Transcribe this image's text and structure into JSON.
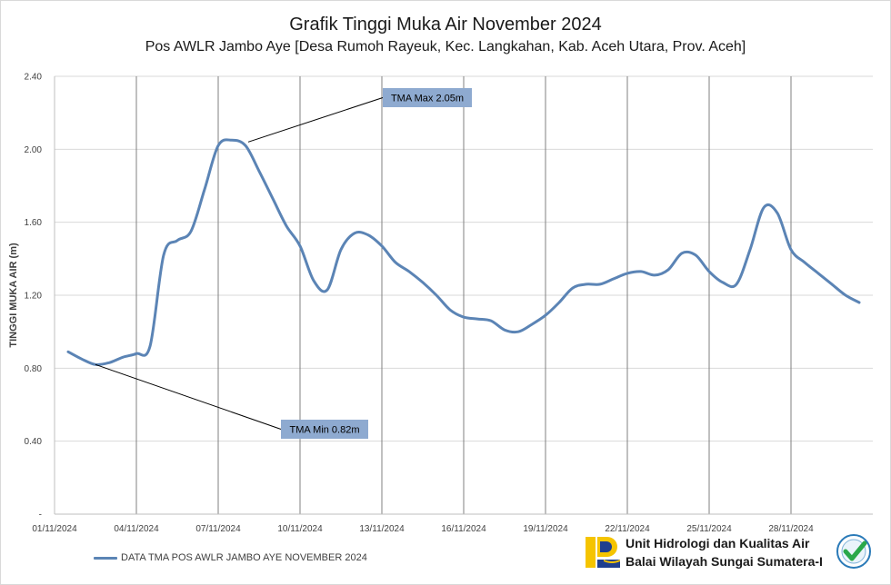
{
  "chart_data": {
    "type": "line",
    "title": "Grafik Tinggi Muka Air November 2024",
    "subtitle": "Pos AWLR Jambo Aye [Desa Rumoh Rayeuk, Kec. Langkahan, Kab. Aceh Utara, Prov. Aceh]",
    "ylabel": "TINGGI MUKA AIR (m)",
    "xlabel": "",
    "ylim": [
      0,
      2.4
    ],
    "yticks": [
      0,
      0.4,
      0.8,
      1.2,
      1.6,
      2.0,
      2.4
    ],
    "ytick_labels": [
      "-",
      "0.40",
      "0.80",
      "1.20",
      "1.60",
      "2.00",
      "2.40"
    ],
    "xticks": [
      "01/11/2024",
      "04/11/2024",
      "07/11/2024",
      "10/11/2024",
      "13/11/2024",
      "16/11/2024",
      "19/11/2024",
      "22/11/2024",
      "25/11/2024",
      "28/11/2024"
    ],
    "grid": "vertical and horizontal",
    "legend_position": "bottom-left",
    "series": [
      {
        "name": "DATA TMA POS AWLR JAMBO AYE NOVEMBER 2024",
        "color": "#5b84b5",
        "x": [
          1.5,
          2,
          2.5,
          3,
          3.5,
          4,
          4.5,
          5,
          5.5,
          6,
          6.5,
          7,
          7.5,
          8,
          8.5,
          9,
          9.5,
          10,
          10.5,
          11,
          11.5,
          12,
          12.5,
          13,
          13.5,
          14,
          14.5,
          15,
          15.5,
          16,
          16.5,
          17,
          17.5,
          18,
          18.5,
          19,
          19.5,
          20,
          20.5,
          21,
          21.5,
          22,
          22.5,
          23,
          23.5,
          24,
          24.5,
          25,
          25.5,
          26,
          26.5,
          27,
          27.5,
          28,
          28.5,
          29,
          29.5,
          30,
          30.5
        ],
        "y": [
          0.89,
          0.85,
          0.82,
          0.83,
          0.86,
          0.88,
          0.92,
          1.42,
          1.5,
          1.55,
          1.78,
          2.02,
          2.05,
          2.02,
          1.88,
          1.73,
          1.58,
          1.47,
          1.28,
          1.23,
          1.45,
          1.54,
          1.53,
          1.47,
          1.38,
          1.33,
          1.27,
          1.2,
          1.12,
          1.08,
          1.07,
          1.06,
          1.01,
          1.0,
          1.04,
          1.09,
          1.16,
          1.24,
          1.26,
          1.26,
          1.29,
          1.32,
          1.33,
          1.31,
          1.34,
          1.43,
          1.42,
          1.33,
          1.27,
          1.26,
          1.45,
          1.68,
          1.65,
          1.45,
          1.38,
          1.32,
          1.26,
          1.2,
          1.16
        ]
      }
    ],
    "annotations": [
      {
        "text": "TMA Max 2.05m",
        "x": 8.1,
        "y": 2.04
      },
      {
        "text": "TMA Min 0.82m",
        "x": 2.5,
        "y": 0.82
      }
    ]
  },
  "branding": {
    "line1": "Unit Hidrologi dan Kualitas Air",
    "line2": "Balai Wilayah Sungai Sumatera-I",
    "logo_colors": {
      "yellow": "#f5c400",
      "blue": "#1f3f8f"
    }
  }
}
